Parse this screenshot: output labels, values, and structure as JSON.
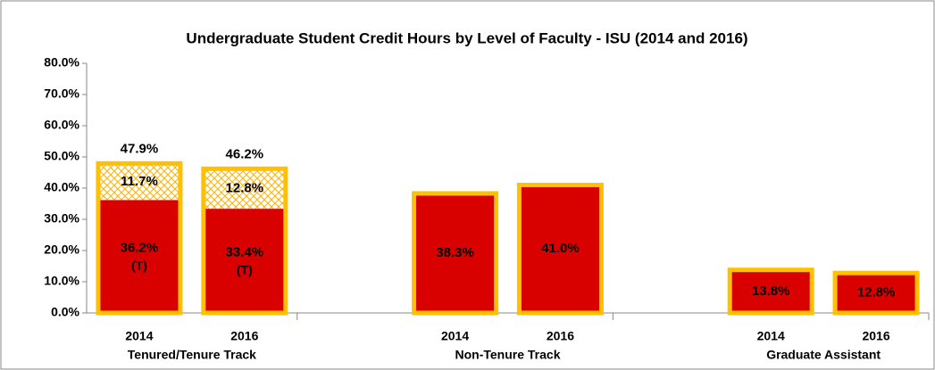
{
  "chart_data": {
    "type": "stacked_bar",
    "title": "Undergraduate Student Credit Hours by Level of Faculty - ISU (2014 and 2016)",
    "categories": [
      "2014",
      "2016",
      "2014",
      "2016",
      "2014",
      "2016"
    ],
    "groups": [
      "Tenured/Tenure Track",
      "Non-Tenure Track",
      "Graduate Assistant"
    ],
    "series": [
      {
        "color": "#d90000",
        "outline": "#ffc000",
        "values": [
          36.2,
          33.4,
          38.3,
          41.0,
          13.8,
          12.8
        ],
        "value_labels": [
          "36.2%",
          "33.4%",
          "38.3%",
          "41.0%",
          "13.8%",
          "12.8%"
        ],
        "notes": [
          "(T)",
          "(T)",
          null,
          null,
          null,
          null
        ]
      },
      {
        "color": "#ffc000",
        "pattern": "crosshatch",
        "values": [
          11.7,
          12.8,
          null,
          null,
          null,
          null
        ],
        "value_labels": [
          "11.7%",
          "12.8%",
          null,
          null,
          null,
          null
        ]
      }
    ],
    "totals": [
      47.9,
      46.2,
      null,
      null,
      null,
      null
    ],
    "total_labels": [
      "47.9%",
      "46.2%",
      null,
      null,
      null,
      null
    ],
    "ylim": [
      0,
      80
    ],
    "yticks": [
      {
        "value": 0,
        "label": "0.0%"
      },
      {
        "value": 10,
        "label": "10.0%"
      },
      {
        "value": 20,
        "label": "20.0%"
      },
      {
        "value": 30,
        "label": "30.0%"
      },
      {
        "value": 40,
        "label": "40.0%"
      },
      {
        "value": 50,
        "label": "50.0%"
      },
      {
        "value": 60,
        "label": "60.0%"
      },
      {
        "value": 70,
        "label": "70.0%"
      },
      {
        "value": 80,
        "label": "80.0%"
      }
    ]
  }
}
